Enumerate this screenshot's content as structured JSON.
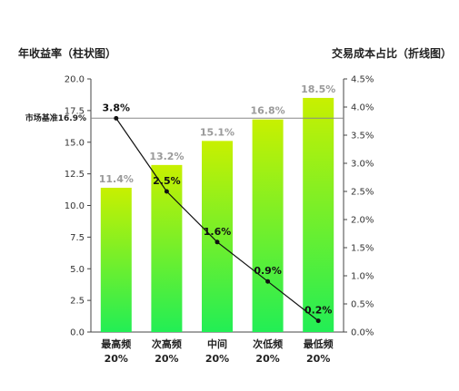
{
  "chart_data": {
    "type": "bar+line",
    "left_axis_title": "年收益率（柱状图）",
    "right_axis_title": "交易成本占比（折线图）",
    "categories": [
      {
        "name": "最高频",
        "share": "20%"
      },
      {
        "name": "次高频",
        "share": "20%"
      },
      {
        "name": "中间",
        "share": "20%"
      },
      {
        "name": "次低频",
        "share": "20%"
      },
      {
        "name": "最低频",
        "share": "20%"
      }
    ],
    "bar_values": [
      11.4,
      13.2,
      15.1,
      16.8,
      18.5
    ],
    "bar_labels": [
      "11.4%",
      "13.2%",
      "15.1%",
      "16.8%",
      "18.5%"
    ],
    "line_values": [
      3.8,
      2.5,
      1.6,
      0.9,
      0.2
    ],
    "line_labels": [
      "3.8%",
      "2.5%",
      "1.6%",
      "0.9%",
      "0.2%"
    ],
    "left_axis": {
      "min": 0,
      "max": 20,
      "ticks": [
        "0.0",
        "2.5",
        "5.0",
        "7.5",
        "10.0",
        "12.5",
        "15.0",
        "17.5",
        "20.0"
      ]
    },
    "right_axis": {
      "min": 0,
      "max": 4.5,
      "ticks": [
        "0.0%",
        "0.5%",
        "1.0%",
        "1.5%",
        "2.0%",
        "2.5%",
        "3.0%",
        "3.5%",
        "4.0%",
        "4.5%"
      ]
    },
    "reference_line": {
      "value": 16.9,
      "label": "市场基准16.9%"
    },
    "colors": {
      "bar_top": "#c8f000",
      "bar_bottom": "#22ee55",
      "line": "#111111",
      "reference": "#888888",
      "bar_label": "#9a9a9a"
    }
  }
}
